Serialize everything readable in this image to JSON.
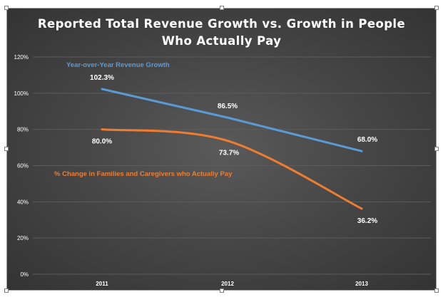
{
  "chart_data": {
    "type": "line",
    "title_line1": "Reported Total Revenue Growth vs. Growth in People",
    "title_line2": "Who Actually Pay",
    "categories": [
      "2011",
      "2012",
      "2013"
    ],
    "y_tick_labels": [
      "0%",
      "20%",
      "40%",
      "60%",
      "80%",
      "100%",
      "120%"
    ],
    "ylim": [
      0,
      120
    ],
    "grid": true,
    "series": [
      {
        "name": "Year-over-Year Revenue Growth",
        "values": [
          102.3,
          86.5,
          68.0
        ],
        "labels": [
          "102.3%",
          "86.5%",
          "68.0%"
        ],
        "color": "#5b9bd5",
        "smooth": false
      },
      {
        "name": "% Change in Families and Caregivers who Actually Pay",
        "values": [
          80.0,
          73.7,
          36.2
        ],
        "labels": [
          "80.0%",
          "73.7%",
          "36.2%"
        ],
        "color": "#ed7d31",
        "smooth": true
      }
    ]
  },
  "colors": {
    "background": "#474747",
    "text": "#ffffff",
    "gridline": "#5c5c5c"
  }
}
